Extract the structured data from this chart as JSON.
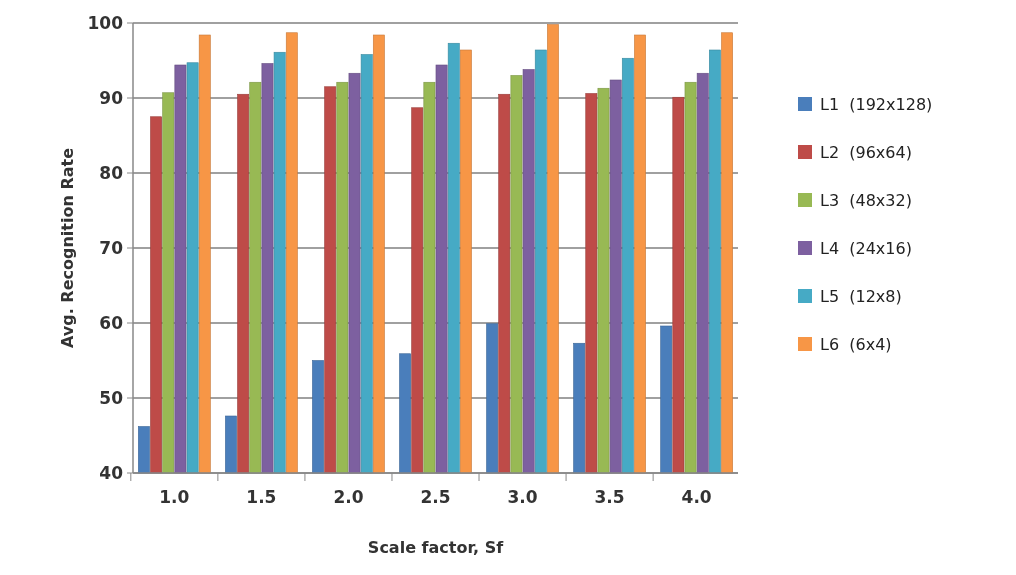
{
  "chart_data": {
    "type": "bar",
    "xlabel": "Scale factor, Sf",
    "ylabel": "Avg. Recognition Rate",
    "categories": [
      "1.0",
      "1.5",
      "2.0",
      "2.5",
      "3.0",
      "3.5",
      "4.0"
    ],
    "series": [
      {
        "name": "L1  (192x128)",
        "color": "#4a7ebb",
        "values": [
          46.2,
          47.6,
          55,
          55.9,
          59.9,
          57.3,
          59.6
        ]
      },
      {
        "name": "L2  (96x64)",
        "color": "#be4b48",
        "values": [
          87.5,
          90.5,
          91.5,
          88.7,
          90.5,
          90.6,
          90.1
        ]
      },
      {
        "name": "L3  (48x32)",
        "color": "#98b954",
        "values": [
          90.7,
          92.1,
          92.1,
          92.1,
          93,
          91.3,
          92.1
        ]
      },
      {
        "name": "L4  (24x16)",
        "color": "#7d60a0",
        "values": [
          94.4,
          94.6,
          93.3,
          94.4,
          93.8,
          92.4,
          93.3
        ]
      },
      {
        "name": "L5  (12x8)",
        "color": "#46aac5",
        "values": [
          94.7,
          96.1,
          95.8,
          97.3,
          96.4,
          95.3,
          96.4
        ]
      },
      {
        "name": "L6  (6x4)",
        "color": "#f79646",
        "values": [
          98.4,
          98.7,
          98.4,
          96.4,
          99.8,
          98.4,
          98.7
        ]
      }
    ],
    "ylim": [
      40,
      100
    ],
    "yticks": [
      40,
      50,
      60,
      70,
      80,
      90,
      100
    ],
    "grid": "y",
    "legend": "right"
  }
}
